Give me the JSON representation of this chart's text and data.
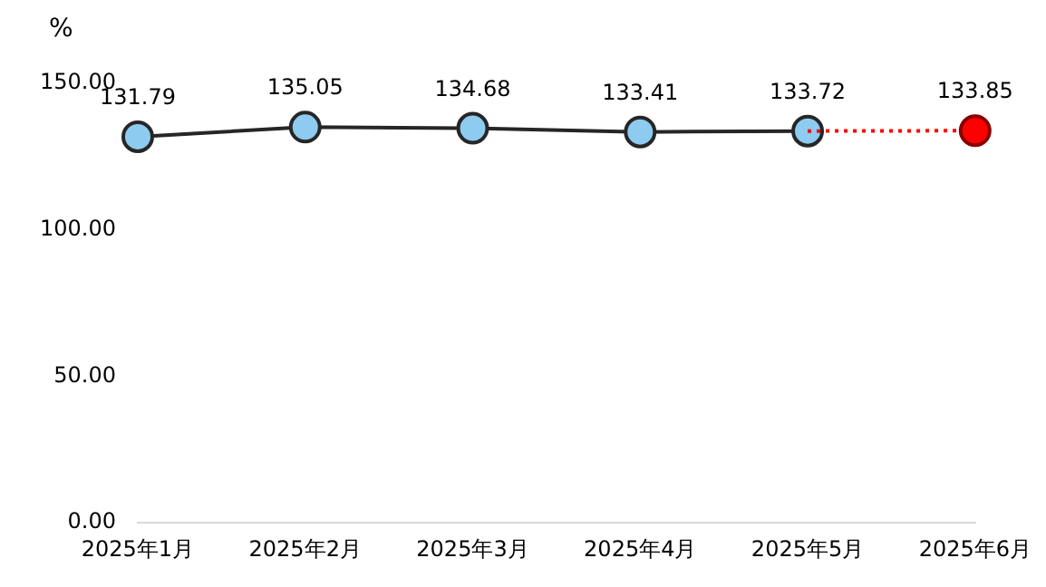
{
  "chart_data": {
    "type": "line",
    "ylabel": "%",
    "categories": [
      "2025年1月",
      "2025年2月",
      "2025年3月",
      "2025年4月",
      "2025年5月",
      "2025年6月"
    ],
    "series": [
      {
        "color": "#262626",
        "colors": [
          "#8ecbf0",
          "#8ecbf0",
          "#8ecbf0",
          "#8ecbf0",
          "#8ecbf0",
          null
        ],
        "line_style": "solid",
        "values": [
          131.79,
          135.05,
          134.68,
          133.41,
          133.72,
          null
        ],
        "value_labels": [
          "131.79",
          "135.05",
          "134.68",
          "133.41",
          "133.72",
          null
        ]
      },
      {
        "color": "#ff0000",
        "colors": [
          null,
          null,
          null,
          null,
          null,
          "#ff0000"
        ],
        "line_style": "dotted",
        "values": [
          null,
          null,
          null,
          null,
          133.72,
          133.85
        ],
        "value_labels": [
          null,
          null,
          null,
          null,
          null,
          "133.85"
        ]
      }
    ],
    "ylim": [
      0,
      150
    ],
    "yticks": [
      {
        "value": 0,
        "label": "0.00"
      },
      {
        "value": 50,
        "label": "50.00"
      },
      {
        "value": 100,
        "label": "100.00"
      },
      {
        "value": 150,
        "label": "150.00"
      }
    ],
    "marker": "circle",
    "grid": false,
    "legend": false
  }
}
